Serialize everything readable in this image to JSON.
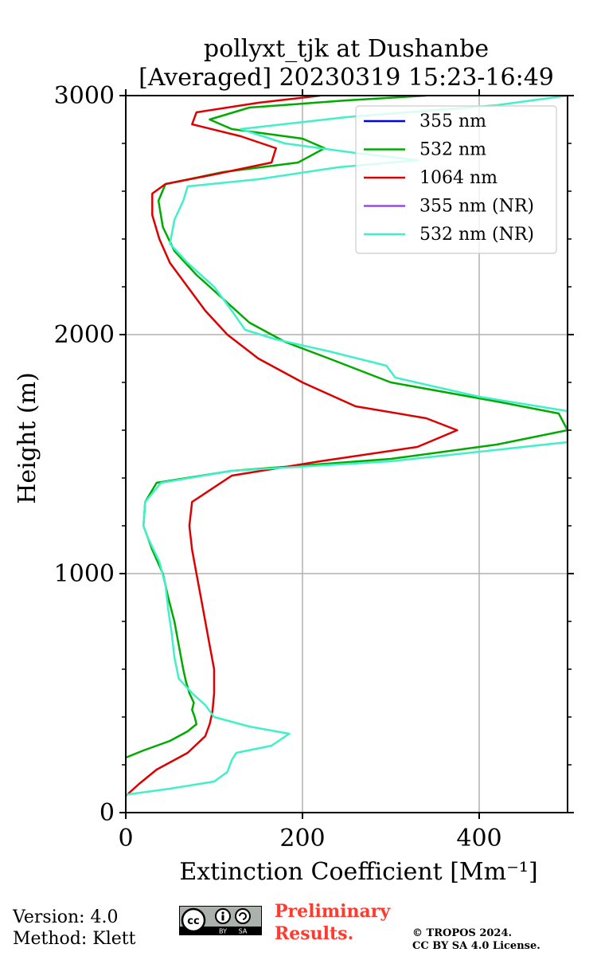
{
  "chart_data": {
    "type": "line",
    "title": [
      "pollyxt_tjk at Dushanbe",
      "[Averaged] 20230319 15:23-16:49"
    ],
    "xlabel": "Extinction Coefficient [Mm⁻¹]",
    "ylabel": "Height (m)",
    "xlim": [
      0,
      500
    ],
    "ylim": [
      0,
      3000
    ],
    "xticks": [
      0,
      200,
      400
    ],
    "yticks": [
      0,
      1000,
      2000,
      3000
    ],
    "grid": true,
    "legend_position": "top-right",
    "series": [
      {
        "name": "355 nm",
        "color": "#0000ff",
        "points": []
      },
      {
        "name": "532 nm",
        "color": "#00aa00",
        "points": [
          [
            0,
            230
          ],
          [
            20,
            260
          ],
          [
            50,
            300
          ],
          [
            70,
            340
          ],
          [
            80,
            370
          ],
          [
            78,
            400
          ],
          [
            75,
            430
          ],
          [
            77,
            460
          ],
          [
            72,
            500
          ],
          [
            68,
            550
          ],
          [
            65,
            600
          ],
          [
            60,
            700
          ],
          [
            55,
            800
          ],
          [
            48,
            900
          ],
          [
            42,
            1000
          ],
          [
            30,
            1100
          ],
          [
            20,
            1200
          ],
          [
            22,
            1300
          ],
          [
            35,
            1380
          ],
          [
            120,
            1430
          ],
          [
            300,
            1480
          ],
          [
            420,
            1540
          ],
          [
            500,
            1600
          ],
          [
            490,
            1670
          ],
          [
            420,
            1720
          ],
          [
            300,
            1800
          ],
          [
            230,
            1900
          ],
          [
            180,
            1970
          ],
          [
            140,
            2050
          ],
          [
            110,
            2150
          ],
          [
            80,
            2250
          ],
          [
            55,
            2350
          ],
          [
            42,
            2450
          ],
          [
            37,
            2560
          ],
          [
            45,
            2630
          ],
          [
            110,
            2680
          ],
          [
            195,
            2720
          ],
          [
            225,
            2780
          ],
          [
            200,
            2820
          ],
          [
            120,
            2860
          ],
          [
            95,
            2900
          ],
          [
            140,
            2950
          ],
          [
            250,
            2980
          ],
          [
            340,
            3000
          ]
        ]
      },
      {
        "name": "1064 nm",
        "color": "#dd0000",
        "points": [
          [
            0,
            70
          ],
          [
            15,
            120
          ],
          [
            35,
            180
          ],
          [
            70,
            250
          ],
          [
            90,
            320
          ],
          [
            95,
            370
          ],
          [
            98,
            420
          ],
          [
            100,
            500
          ],
          [
            100,
            600
          ],
          [
            95,
            700
          ],
          [
            90,
            800
          ],
          [
            85,
            900
          ],
          [
            80,
            1000
          ],
          [
            75,
            1100
          ],
          [
            72,
            1200
          ],
          [
            75,
            1300
          ],
          [
            120,
            1410
          ],
          [
            220,
            1470
          ],
          [
            330,
            1530
          ],
          [
            375,
            1600
          ],
          [
            340,
            1650
          ],
          [
            260,
            1700
          ],
          [
            200,
            1800
          ],
          [
            150,
            1900
          ],
          [
            115,
            2000
          ],
          [
            90,
            2100
          ],
          [
            70,
            2200
          ],
          [
            50,
            2300
          ],
          [
            38,
            2400
          ],
          [
            30,
            2500
          ],
          [
            30,
            2590
          ],
          [
            45,
            2630
          ],
          [
            100,
            2670
          ],
          [
            165,
            2720
          ],
          [
            170,
            2780
          ],
          [
            130,
            2830
          ],
          [
            75,
            2880
          ],
          [
            80,
            2930
          ],
          [
            150,
            2970
          ],
          [
            220,
            3000
          ]
        ]
      },
      {
        "name": "355 nm (NR)",
        "color": "#a040ff",
        "points": []
      },
      {
        "name": "532 nm (NR)",
        "color": "#40f0c8",
        "points": [
          [
            0,
            75
          ],
          [
            50,
            100
          ],
          [
            100,
            130
          ],
          [
            115,
            170
          ],
          [
            120,
            220
          ],
          [
            125,
            250
          ],
          [
            165,
            280
          ],
          [
            185,
            330
          ],
          [
            140,
            360
          ],
          [
            100,
            400
          ],
          [
            90,
            450
          ],
          [
            75,
            500
          ],
          [
            60,
            560
          ],
          [
            55,
            650
          ],
          [
            52,
            750
          ],
          [
            48,
            850
          ],
          [
            45,
            950
          ],
          [
            38,
            1050
          ],
          [
            25,
            1150
          ],
          [
            20,
            1200
          ],
          [
            22,
            1300
          ],
          [
            40,
            1380
          ],
          [
            120,
            1430
          ],
          [
            300,
            1470
          ],
          [
            500,
            1550
          ],
          [
            500,
            1680
          ],
          [
            400,
            1740
          ],
          [
            305,
            1820
          ],
          [
            295,
            1870
          ],
          [
            230,
            1930
          ],
          [
            170,
            1980
          ],
          [
            135,
            2020
          ],
          [
            120,
            2100
          ],
          [
            100,
            2200
          ],
          [
            70,
            2300
          ],
          [
            50,
            2380
          ],
          [
            55,
            2480
          ],
          [
            65,
            2560
          ],
          [
            70,
            2620
          ],
          [
            150,
            2650
          ],
          [
            240,
            2700
          ],
          [
            330,
            2730
          ],
          [
            260,
            2760
          ],
          [
            180,
            2800
          ],
          [
            130,
            2860
          ],
          [
            250,
            2910
          ],
          [
            420,
            2960
          ],
          [
            500,
            3000
          ]
        ]
      }
    ]
  },
  "footer": {
    "version": "Version: 4.0",
    "method": "Method: Klett",
    "preliminary_line1": "Preliminary",
    "preliminary_line2": "Results.",
    "copyright_line1": "© TROPOS 2024.",
    "copyright_line2": "CC BY SA 4.0 License.",
    "license_badge_text": [
      "cc",
      "BY",
      "SA"
    ]
  }
}
